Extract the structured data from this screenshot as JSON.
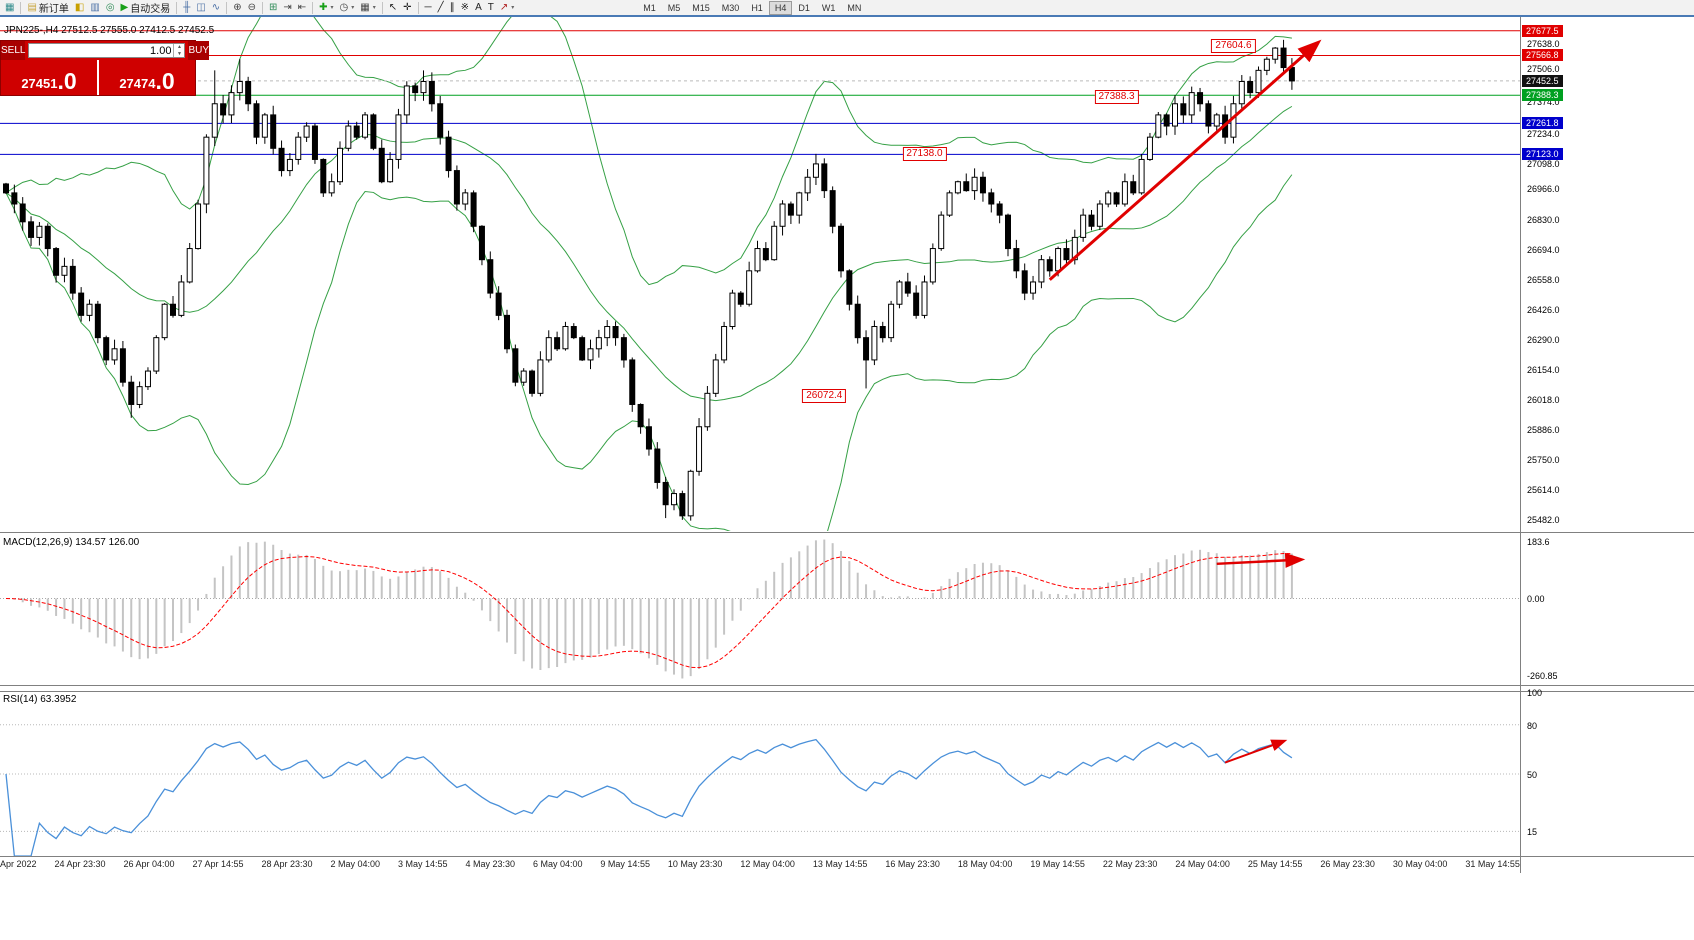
{
  "toolbar": {
    "groups": [
      {
        "items": [
          {
            "name": "terminal-icon",
            "glyph": "▦",
            "color": "#2e8b8b"
          }
        ]
      },
      {
        "items": [
          {
            "name": "new-order-button",
            "glyph": "▤",
            "color": "#c8a53d",
            "label": "新订单"
          },
          {
            "name": "chart-profiles-icon",
            "glyph": "◧",
            "color": "#c8a000"
          },
          {
            "name": "data-window-icon",
            "glyph": "▥",
            "color": "#4a6fa5"
          },
          {
            "name": "navigator-icon",
            "glyph": "◎",
            "color": "#2e8b57"
          },
          {
            "name": "auto-trading-button",
            "glyph": "▶",
            "color": "#18a018",
            "label": "自动交易"
          }
        ]
      },
      {
        "items": [
          {
            "name": "bar-chart-icon",
            "glyph": "╫",
            "color": "#4a6fa5"
          },
          {
            "name": "candlestick-chart-icon",
            "glyph": "◫",
            "color": "#4a6fa5"
          },
          {
            "name": "line-chart-icon",
            "glyph": "∿",
            "color": "#4a6fa5"
          }
        ]
      },
      {
        "items": [
          {
            "name": "zoom-in-icon",
            "glyph": "⊕",
            "color": "#444444"
          },
          {
            "name": "zoom-out-icon",
            "glyph": "⊖",
            "color": "#444444"
          }
        ]
      },
      {
        "items": [
          {
            "name": "tile-windows-icon",
            "glyph": "⊞",
            "color": "#2e8b57"
          },
          {
            "name": "auto-scroll-icon",
            "glyph": "⇥",
            "color": "#444444"
          },
          {
            "name": "chart-shift-icon",
            "glyph": "⇤",
            "color": "#444444"
          }
        ]
      },
      {
        "items": [
          {
            "name": "indicators-button",
            "glyph": "✚",
            "color": "#18a018",
            "dropdown": true
          },
          {
            "name": "periods-button",
            "glyph": "◷",
            "color": "#444444",
            "dropdown": true
          },
          {
            "name": "templates-button",
            "glyph": "▦",
            "color": "#444444",
            "dropdown": true
          }
        ]
      },
      {
        "items": [
          {
            "name": "cursor-icon",
            "glyph": "↖",
            "color": "#222222"
          },
          {
            "name": "crosshair-icon",
            "glyph": "✛",
            "color": "#222222"
          }
        ]
      },
      {
        "items": [
          {
            "name": "horizontal-line-icon",
            "glyph": "─",
            "color": "#222222"
          },
          {
            "name": "trendline-icon",
            "glyph": "╱",
            "color": "#222222"
          },
          {
            "name": "equidistant-channel-icon",
            "glyph": "∥",
            "color": "#222222"
          },
          {
            "name": "cycle-lines-icon",
            "glyph": "※",
            "color": "#222222"
          },
          {
            "name": "text-icon",
            "glyph": "A",
            "color": "#222222"
          },
          {
            "name": "text-label-icon",
            "glyph": "T",
            "color": "#222222"
          },
          {
            "name": "arrows-button",
            "glyph": "↗",
            "color": "#b02020",
            "dropdown": true
          }
        ]
      }
    ],
    "timeframes": [
      "M1",
      "M5",
      "M15",
      "M30",
      "H1",
      "H4",
      "D1",
      "W1",
      "MN"
    ],
    "active_timeframe": "H4"
  },
  "quote_panel": {
    "sell_label": "SELL",
    "buy_label": "BUY",
    "lot": "1.00",
    "sell_price_small": "27451",
    "sell_price_big": ".0",
    "buy_price_small": "27474",
    "buy_price_big": ".0"
  },
  "chart_header": "JPN225-,H4 27512.5 27555.0 27412.5 27452.5",
  "macd": {
    "label": "MACD(12,26,9) 134.57 126.00",
    "scale": [
      "183.6",
      "0.00",
      "-260.85"
    ]
  },
  "rsi": {
    "label": "RSI(14) 63.3952",
    "scale": [
      "100",
      "80",
      "50",
      "15"
    ],
    "levels": [
      80,
      50,
      15
    ]
  },
  "price_axis": {
    "ticks": [
      "27638.0",
      "27506.0",
      "27374.0",
      "27234.0",
      "27098.0",
      "26966.0",
      "26830.0",
      "26694.0",
      "26558.0",
      "26426.0",
      "26290.0",
      "26154.0",
      "26018.0",
      "25886.0",
      "25750.0",
      "25614.0",
      "25482.0"
    ]
  },
  "time_axis": [
    "Apr 2022",
    "24 Apr 23:30",
    "26 Apr 04:00",
    "27 Apr 14:55",
    "28 Apr 23:30",
    "2 May 04:00",
    "3 May 14:55",
    "4 May 23:30",
    "6 May 04:00",
    "9 May 14:55",
    "10 May 23:30",
    "12 May 04:00",
    "13 May 14:55",
    "16 May 23:30",
    "18 May 04:00",
    "19 May 14:55",
    "22 May 23:30",
    "24 May 04:00",
    "25 May 14:55",
    "26 May 23:30",
    "30 May 04:00",
    "31 May 14:55"
  ],
  "chart_data": {
    "type": "candlestick",
    "symbol": "JPN225-",
    "timeframe": "H4",
    "ohlc_header": {
      "open": 27512.5,
      "high": 27555.0,
      "low": 27412.5,
      "close": 27452.5
    },
    "first_open": 26990,
    "closes": [
      26950,
      26900,
      26820,
      26750,
      26800,
      26700,
      26580,
      26620,
      26500,
      26400,
      26450,
      26300,
      26200,
      26250,
      26100,
      26000,
      26080,
      26150,
      26300,
      26450,
      26400,
      26550,
      26700,
      26900,
      27200,
      27350,
      27300,
      27400,
      27450,
      27350,
      27200,
      27300,
      27150,
      27050,
      27100,
      27200,
      27250,
      27100,
      26950,
      27000,
      27150,
      27250,
      27200,
      27300,
      27150,
      27000,
      27100,
      27300,
      27430,
      27400,
      27450,
      27350,
      27200,
      27050,
      26900,
      26950,
      26800,
      26650,
      26500,
      26400,
      26250,
      26100,
      26150,
      26050,
      26200,
      26300,
      26250,
      26350,
      26300,
      26200,
      26250,
      26300,
      26350,
      26300,
      26200,
      26000,
      25900,
      25800,
      25650,
      25550,
      25600,
      25500,
      25700,
      25900,
      26050,
      26200,
      26350,
      26500,
      26450,
      26600,
      26700,
      26650,
      26800,
      26900,
      26850,
      26950,
      27020,
      27080,
      26960,
      26800,
      26600,
      26450,
      26300,
      26200,
      26350,
      26300,
      26450,
      26550,
      26500,
      26400,
      26550,
      26700,
      26850,
      26950,
      27000,
      26960,
      27020,
      26950,
      26900,
      26850,
      26700,
      26600,
      26500,
      26550,
      26650,
      26600,
      26700,
      26650,
      26750,
      26850,
      26800,
      26900,
      26950,
      26900,
      27000,
      26950,
      27100,
      27200,
      27300,
      27250,
      27350,
      27300,
      27400,
      27350,
      27250,
      27300,
      27200,
      27350,
      27450,
      27400,
      27500,
      27550,
      27600,
      27512.5,
      27452.5
    ],
    "key_extremes": {
      "15": {
        "low": 25940
      },
      "25": {
        "high": 27500
      },
      "28": {
        "high": 27550
      },
      "50": {
        "high": 27500
      },
      "79": {
        "low": 25490
      },
      "81": {
        "low": 25482
      },
      "97": {
        "high": 27125
      },
      "103": {
        "low": 26072
      },
      "116": {
        "high": 27060
      },
      "152": {
        "high": 27604.6
      },
      "154": {
        "high": 27555,
        "low": 27412.5
      }
    },
    "indicators": {
      "bollinger": {
        "period": 20,
        "deviation": 2
      },
      "macd": {
        "fast": 12,
        "slow": 26,
        "signal": 9,
        "main_value": 134.57,
        "signal_value": 126.0
      },
      "rsi": {
        "period": 14,
        "value": 63.3952
      }
    },
    "hlines": [
      {
        "price": 27677.5,
        "color": "#e00000",
        "badge": true
      },
      {
        "price": 27566.8,
        "color": "#e00000",
        "badge": true
      },
      {
        "price": 27388.3,
        "color": "#00a020",
        "badge": true
      },
      {
        "price": 27261.8,
        "color": "#0000cc",
        "badge": true
      },
      {
        "price": 27123.0,
        "color": "#0000cc",
        "badge": true
      }
    ],
    "current_price": 27452.5,
    "colors": {
      "bollinger": "#35a045",
      "candle_up": "#ffffff",
      "candle_down": "#000000",
      "macd_hist": "#c4c4c4",
      "macd_signal": "#ff0000",
      "rsi_line": "#4a90d9",
      "annotation": "#e00000",
      "badge_current": "#111111"
    }
  },
  "annotations": {
    "callouts": [
      {
        "text": "27604.6",
        "i": 147,
        "price": 27610
      },
      {
        "text": "27388.3",
        "i": 133,
        "price": 27380
      },
      {
        "text": "27138.0",
        "i": 110,
        "price": 27125
      },
      {
        "text": "26072.4",
        "i": 98,
        "price": 26040
      }
    ],
    "trend_arrow": {
      "from": {
        "i": 125,
        "price": 26560
      },
      "to": {
        "i": 157,
        "price": 27620
      }
    },
    "macd_arrow": {
      "from_i": 145,
      "from_v": 125,
      "to_i": 155,
      "to_v": 140
    },
    "rsi_arrow": {
      "from": {
        "i": 146,
        "v": 57
      },
      "to": {
        "i": 153,
        "v": 70
      }
    }
  }
}
